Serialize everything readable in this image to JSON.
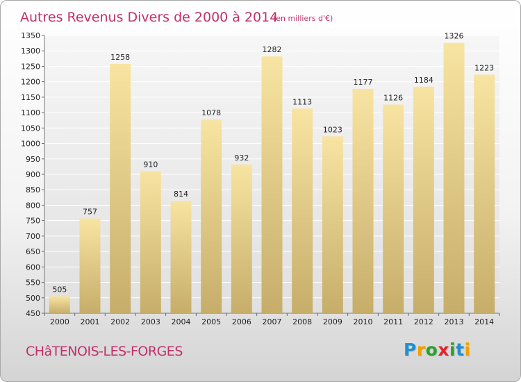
{
  "chart_data": {
    "type": "bar",
    "title": "Autres Revenus Divers de 2000 à 2014",
    "subtitle": "(en milliers d'€)",
    "categories": [
      "2000",
      "2001",
      "2002",
      "2003",
      "2004",
      "2005",
      "2006",
      "2007",
      "2008",
      "2009",
      "2010",
      "2011",
      "2012",
      "2013",
      "2014"
    ],
    "values": [
      505,
      757,
      1258,
      910,
      814,
      1078,
      932,
      1282,
      1113,
      1023,
      1177,
      1126,
      1184,
      1326,
      1223
    ],
    "ylim": [
      450,
      1350
    ],
    "yticks": [
      450,
      500,
      550,
      600,
      650,
      700,
      750,
      800,
      850,
      900,
      950,
      1000,
      1050,
      1100,
      1150,
      1200,
      1250,
      1300,
      1350
    ],
    "grid": true,
    "bar_color": "#e8cf88"
  },
  "commune": "CHâTENOIS-LES-FORGES",
  "logo": {
    "letters": [
      "P",
      "r",
      "o",
      "x",
      "i",
      "t",
      "i"
    ],
    "colors": [
      "#1e8fd4",
      "#f0a000",
      "#2aa12a",
      "#e0262b",
      "#2aa12a",
      "#1e8fd4",
      "#f0a000"
    ]
  }
}
